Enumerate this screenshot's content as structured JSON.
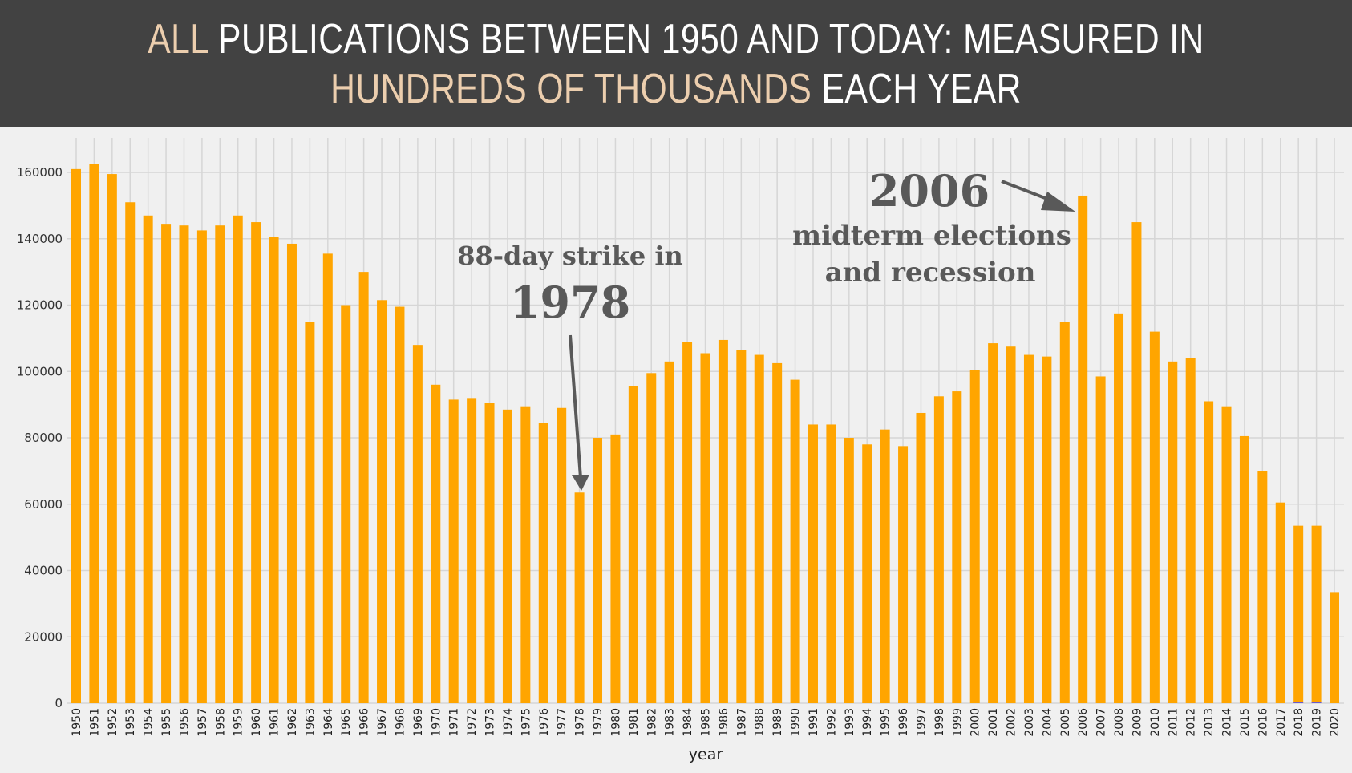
{
  "header": {
    "line1_highlight": "ALL",
    "line1_rest": " PUBLICATIONS BETWEEN 1950 AND TODAY: MEASURED IN",
    "line2_highlight": "HUNDREDS OF THOUSANDS",
    "line2_rest": " EACH YEAR"
  },
  "colors": {
    "bar": "#ffa500",
    "header_bg": "#424242",
    "highlight": "#ecceae",
    "annotation": "#595959",
    "grid": "#d6d6d6"
  },
  "annotations": {
    "strike_line1": "88-day strike in",
    "strike_year": "1978",
    "recession_year": "2006",
    "recession_line1": "midterm elections",
    "recession_line2": "and recession"
  },
  "chart_data": {
    "type": "bar",
    "title": "ALL PUBLICATIONS BETWEEN 1950 AND TODAY: MEASURED IN HUNDREDS OF THOUSANDS EACH YEAR",
    "xlabel": "year",
    "ylabel": "",
    "ylim": [
      0,
      170000
    ],
    "yticks": [
      0,
      20000,
      40000,
      60000,
      80000,
      100000,
      120000,
      140000,
      160000
    ],
    "grid": true,
    "legend": "none",
    "categories": [
      "1950",
      "1951",
      "1952",
      "1953",
      "1954",
      "1955",
      "1956",
      "1957",
      "1958",
      "1959",
      "1960",
      "1961",
      "1962",
      "1963",
      "1964",
      "1965",
      "1966",
      "1967",
      "1968",
      "1969",
      "1970",
      "1971",
      "1972",
      "1973",
      "1974",
      "1975",
      "1976",
      "1977",
      "1978",
      "1979",
      "1980",
      "1981",
      "1982",
      "1983",
      "1984",
      "1985",
      "1986",
      "1987",
      "1988",
      "1989",
      "1990",
      "1991",
      "1992",
      "1993",
      "1994",
      "1995",
      "1996",
      "1997",
      "1998",
      "1999",
      "2000",
      "2001",
      "2002",
      "2003",
      "2004",
      "2005",
      "2006",
      "2007",
      "2008",
      "2009",
      "2010",
      "2011",
      "2012",
      "2013",
      "2014",
      "2015",
      "2016",
      "2017",
      "2018",
      "2019",
      "2020"
    ],
    "values": [
      161000,
      162500,
      159500,
      151000,
      147000,
      144500,
      144000,
      142500,
      144000,
      147000,
      145000,
      140500,
      138500,
      115000,
      135500,
      120000,
      130000,
      121500,
      119500,
      108000,
      96000,
      91500,
      92000,
      90500,
      88500,
      89500,
      84500,
      89000,
      63500,
      80000,
      81000,
      95500,
      99500,
      103000,
      109000,
      105500,
      109500,
      106500,
      105000,
      102500,
      97500,
      84000,
      84000,
      80000,
      78000,
      82500,
      77500,
      87500,
      92500,
      94000,
      100500,
      108500,
      107500,
      105000,
      104500,
      115000,
      153000,
      98500,
      117500,
      145000,
      112000,
      103000,
      104000,
      91000,
      89500,
      80500,
      70000,
      60500,
      53500,
      53500,
      33500
    ],
    "annotations": [
      {
        "text": "88-day strike in 1978",
        "x": "1978"
      },
      {
        "text": "2006 midterm elections and recession",
        "x": "2006"
      }
    ]
  }
}
